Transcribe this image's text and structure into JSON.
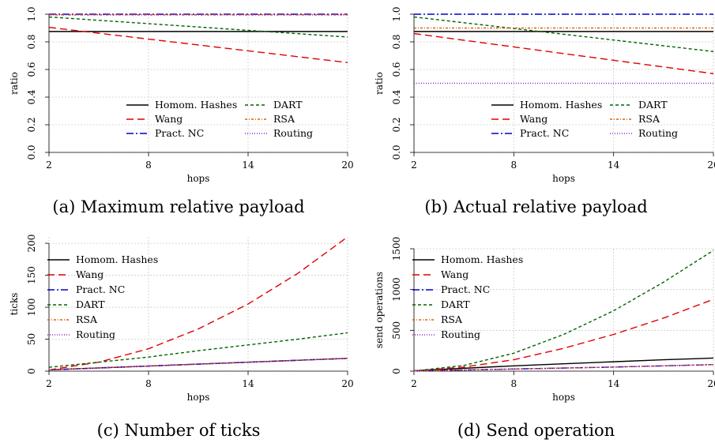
{
  "series_styles": {
    "Homom. Hashes": {
      "color": "#000000",
      "dash": ""
    },
    "Wang": {
      "color": "#e00000",
      "dash": "9,5"
    },
    "Pract. NC": {
      "color": "#0000cc",
      "dash": "9,3,2,3"
    },
    "DART": {
      "color": "#006400",
      "dash": "4,3"
    },
    "RSA": {
      "color": "#e06000",
      "dash": "3,2,1,2"
    },
    "Routing": {
      "color": "#9a20d0",
      "dash": "1,2"
    }
  },
  "chart_data": [
    {
      "id": "a",
      "type": "line",
      "caption": "(a) Maximum relative payload",
      "xlabel": "hops",
      "ylabel": "ratio",
      "xlim": [
        2,
        20
      ],
      "ylim": [
        0,
        1
      ],
      "xticks": [
        "2",
        "8",
        "14",
        "20"
      ],
      "yticks": [
        "0.0",
        "0.2",
        "0.4",
        "0.6",
        "0.8",
        "1.0"
      ],
      "grid": true,
      "legend_position": "bottom-right",
      "legend_columns": 2,
      "x": [
        2,
        20
      ],
      "series": [
        {
          "name": "Homom. Hashes",
          "values": [
            0.875,
            0.875
          ]
        },
        {
          "name": "Wang",
          "values": [
            0.905,
            0.65
          ]
        },
        {
          "name": "Pract. NC",
          "values": [
            1.0,
            1.0
          ]
        },
        {
          "name": "DART",
          "values": [
            0.98,
            0.835
          ]
        },
        {
          "name": "RSA",
          "values": [
            0.995,
            0.995
          ]
        },
        {
          "name": "Routing",
          "values": [
            0.997,
            0.997
          ]
        }
      ]
    },
    {
      "id": "b",
      "type": "line",
      "caption": "(b) Actual relative payload",
      "xlabel": "hops",
      "ylabel": "ratio",
      "xlim": [
        2,
        20
      ],
      "ylim": [
        0,
        1
      ],
      "xticks": [
        "2",
        "8",
        "14",
        "20"
      ],
      "yticks": [
        "0.0",
        "0.2",
        "0.4",
        "0.6",
        "0.8",
        "1.0"
      ],
      "grid": true,
      "legend_position": "bottom-right",
      "legend_columns": 2,
      "x": [
        2,
        20
      ],
      "series": [
        {
          "name": "Homom. Hashes",
          "values": [
            0.875,
            0.875
          ]
        },
        {
          "name": "Wang",
          "values": [
            0.86,
            0.57
          ]
        },
        {
          "name": "Pract. NC",
          "values": [
            1.0,
            1.0
          ]
        },
        {
          "name": "DART",
          "values": [
            0.98,
            0.73
          ]
        },
        {
          "name": "RSA",
          "values": [
            0.9,
            0.9
          ]
        },
        {
          "name": "Routing",
          "values": [
            0.5,
            0.5
          ]
        }
      ]
    },
    {
      "id": "c",
      "type": "line",
      "caption": "(c) Number of ticks",
      "xlabel": "hops",
      "ylabel": "ticks",
      "xlim": [
        2,
        20
      ],
      "ylim": [
        0,
        210
      ],
      "xticks": [
        "2",
        "8",
        "14",
        "20"
      ],
      "yticks": [
        "0",
        "50",
        "100",
        "150",
        "200"
      ],
      "grid": true,
      "legend_position": "top-left",
      "legend_columns": 1,
      "x": [
        2,
        5,
        8,
        11,
        14,
        17,
        20
      ],
      "series": [
        {
          "name": "Homom. Hashes",
          "values": [
            2,
            5,
            8,
            11,
            14,
            17,
            20
          ]
        },
        {
          "name": "Wang",
          "values": [
            2,
            14,
            35,
            66,
            105,
            153,
            210
          ]
        },
        {
          "name": "Pract. NC",
          "values": [
            2,
            5,
            8,
            11,
            14,
            17,
            20
          ]
        },
        {
          "name": "DART",
          "values": [
            6,
            14,
            22,
            32,
            41,
            50,
            60
          ]
        },
        {
          "name": "RSA",
          "values": [
            2,
            5,
            8,
            11,
            14,
            17,
            20
          ]
        },
        {
          "name": "Routing",
          "values": [
            2,
            5,
            8,
            11,
            14,
            17,
            20
          ]
        }
      ]
    },
    {
      "id": "d",
      "type": "line",
      "caption": "(d) Send operation",
      "xlabel": "hops",
      "ylabel": "send operations",
      "xlim": [
        2,
        20
      ],
      "ylim": [
        0,
        1500
      ],
      "xticks": [
        "2",
        "8",
        "14",
        "20"
      ],
      "yticks": [
        "0",
        "500",
        "1000",
        "1500"
      ],
      "grid": true,
      "legend_position": "top-left",
      "legend_columns": 1,
      "x": [
        2,
        5,
        8,
        11,
        14,
        17,
        20
      ],
      "series": [
        {
          "name": "Homom. Hashes",
          "values": [
            5,
            35,
            65,
            90,
            115,
            140,
            160
          ]
        },
        {
          "name": "Wang",
          "values": [
            2,
            50,
            140,
            280,
            450,
            650,
            880
          ]
        },
        {
          "name": "Pract. NC",
          "values": [
            2,
            14,
            26,
            38,
            50,
            65,
            80
          ]
        },
        {
          "name": "DART",
          "values": [
            2,
            70,
            220,
            450,
            740,
            1090,
            1480
          ]
        },
        {
          "name": "RSA",
          "values": [
            2,
            14,
            26,
            38,
            50,
            65,
            80
          ]
        },
        {
          "name": "Routing",
          "values": [
            2,
            14,
            26,
            38,
            50,
            65,
            80
          ]
        }
      ]
    }
  ]
}
